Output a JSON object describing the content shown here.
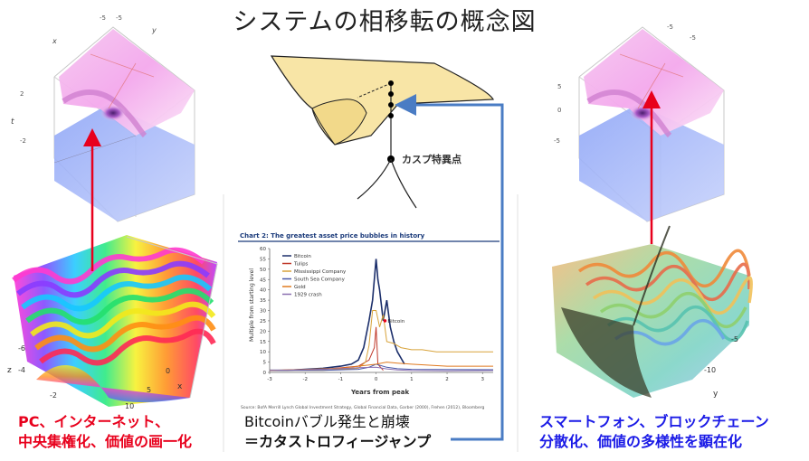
{
  "title": "システムの相移転の概念図",
  "cusp_label": "カスプ特異点",
  "left_caption": {
    "line1": "PC、インターネット、",
    "line2": "中央集権化、価値の画一化"
  },
  "center_caption": {
    "line1": "Bitcoinバブル発生と崩壊",
    "line2": "＝カタストロフィージャンプ"
  },
  "right_caption": {
    "line1": "スマートフォン、ブロックチェーン",
    "line2": "分散化、価値の多様性を顕在化"
  },
  "left_top_plot_labels": {
    "x": "x",
    "y": "y",
    "t": "t",
    "xtick": "-5",
    "ytick": "-5",
    "tick_top": "2",
    "tick_bottom": "-2"
  },
  "left_bottom_plot_labels": {
    "z": "z",
    "x": "x",
    "ticks_z": [
      "-6",
      "-4",
      "-2"
    ],
    "ticks_x": [
      "0",
      "5",
      "10"
    ]
  },
  "right_top_plot_labels": {
    "xtick": "-5",
    "ytick": "-5",
    "tick_5": "5",
    "tick_0": "0",
    "tick_m5": "-5"
  },
  "right_bottom_plot_labels": {
    "y": "y",
    "ticks_y": [
      "-10",
      "-5"
    ]
  },
  "colors": {
    "red_arrow": "#e8001c",
    "blue_arrow": "#4a7cc4",
    "fold_fill": "#f8e5a6",
    "bitcoin_line": "#1c2f6b",
    "tulips_line": "#c0392b",
    "mississippi_line": "#d8a33a",
    "southsea_line": "#4a58a8",
    "gold_line": "#e07a20",
    "crash_line": "#8a6fb0"
  },
  "chart_data": {
    "type": "line",
    "title": "Chart 2: The greatest asset price bubbles in history",
    "xlabel": "Years from peak",
    "ylabel": "Multiple from starting level",
    "xlim": [
      -3,
      3.3
    ],
    "ylim": [
      0,
      60
    ],
    "xticks": [
      -3,
      -2,
      -1,
      0,
      1,
      2,
      3
    ],
    "yticks": [
      0,
      5,
      10,
      15,
      20,
      25,
      30,
      35,
      40,
      45,
      50,
      55,
      60
    ],
    "annotation": "Bitcoin",
    "source": "Source: BofA Merrill Lynch Global Investment Strategy, Global Financial Data, Garber (2000), Frehen (2012), Bloomberg",
    "legend_position": "top-left",
    "series": [
      {
        "name": "Bitcoin",
        "x": [
          -3,
          -2.5,
          -2,
          -1.5,
          -1.0,
          -0.7,
          -0.5,
          -0.35,
          -0.2,
          -0.1,
          0,
          0.05,
          0.1,
          0.2,
          0.3,
          0.4,
          0.5,
          0.6,
          0.8
        ],
        "y": [
          1,
          1,
          1.5,
          2,
          3,
          4,
          6,
          12,
          25,
          35,
          55,
          45,
          40,
          25,
          35,
          22,
          15,
          10,
          4
        ]
      },
      {
        "name": "Tulips",
        "x": [
          -3,
          -1.5,
          -0.5,
          -0.2,
          -0.05,
          0,
          0.05,
          0.2
        ],
        "y": [
          1,
          1.5,
          3,
          6,
          12,
          22,
          4,
          1
        ]
      },
      {
        "name": "Mississippi Company",
        "x": [
          -3,
          -1.5,
          -0.5,
          -0.3,
          -0.2,
          -0.1,
          0,
          0.1,
          0.2,
          0.3,
          0.5,
          0.7,
          1.0,
          1.3,
          1.7,
          2.0,
          3.0,
          3.3
        ],
        "y": [
          1,
          1,
          2,
          5,
          13,
          30,
          30,
          22,
          28,
          15,
          14,
          12,
          11,
          11,
          10,
          10,
          10,
          10
        ]
      },
      {
        "name": "South Sea Company",
        "x": [
          -3,
          -1.5,
          -0.5,
          -0.2,
          0,
          0.3,
          0.6,
          1.0,
          3.3
        ],
        "y": [
          1,
          1,
          1.5,
          2.5,
          4,
          2.5,
          1.8,
          1.5,
          1.3
        ]
      },
      {
        "name": "Gold",
        "x": [
          -3,
          -2,
          -1,
          -0.5,
          0,
          0.3,
          0.6,
          1.0,
          1.5,
          2.0,
          2.5,
          3.3
        ],
        "y": [
          1,
          1.5,
          2,
          3,
          4,
          5,
          4.5,
          4,
          3.5,
          3,
          3,
          3
        ]
      },
      {
        "name": "1929 crash",
        "x": [
          -3,
          -2,
          -1,
          -0.5,
          0,
          0.3,
          0.6,
          1.0,
          2.0,
          3.3
        ],
        "y": [
          1,
          1.3,
          1.8,
          2.3,
          2.5,
          1.7,
          1.2,
          0.9,
          0.8,
          0.9
        ]
      }
    ]
  }
}
